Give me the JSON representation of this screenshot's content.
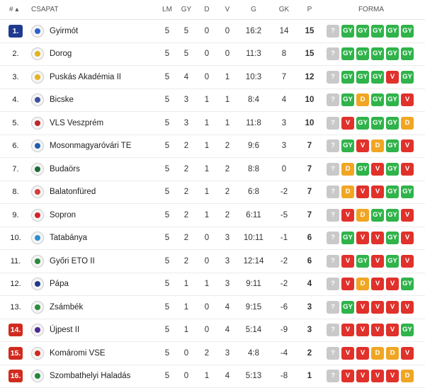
{
  "header": {
    "rank": "# ▴",
    "team": "CSAPAT",
    "lm": "LM",
    "gy": "GY",
    "d": "D",
    "v": "V",
    "g": "G",
    "gk": "GK",
    "p": "P",
    "forma": "FORMA"
  },
  "colors": {
    "promotion": "#1f3b8f",
    "relegation": "#d12b1f",
    "win": "#2fb34a",
    "draw": "#f0a623",
    "loss": "#e0312b",
    "unknown": "#c9c9c9"
  },
  "unknown_label": "?",
  "rows": [
    {
      "rank": "1.",
      "zone": "promotion",
      "team": "Gyirmót",
      "logo_color": "#2a62c9",
      "lm": "5",
      "gy": "5",
      "d": "0",
      "v": "0",
      "g": "16:2",
      "gk": "14",
      "p": "15",
      "form": [
        "GY",
        "GY",
        "GY",
        "GY",
        "GY"
      ]
    },
    {
      "rank": "2.",
      "zone": "",
      "team": "Dorog",
      "logo_color": "#e3b21d",
      "lm": "5",
      "gy": "5",
      "d": "0",
      "v": "0",
      "g": "11:3",
      "gk": "8",
      "p": "15",
      "form": [
        "GY",
        "GY",
        "GY",
        "GY",
        "GY"
      ]
    },
    {
      "rank": "3.",
      "zone": "",
      "team": "Puskás Akadémia II",
      "logo_color": "#e6b31e",
      "lm": "5",
      "gy": "4",
      "d": "0",
      "v": "1",
      "g": "10:3",
      "gk": "7",
      "p": "12",
      "form": [
        "GY",
        "GY",
        "GY",
        "V",
        "GY"
      ]
    },
    {
      "rank": "4.",
      "zone": "",
      "team": "Bicske",
      "logo_color": "#3d4fa0",
      "lm": "5",
      "gy": "3",
      "d": "1",
      "v": "1",
      "g": "8:4",
      "gk": "4",
      "p": "10",
      "form": [
        "GY",
        "D",
        "GY",
        "GY",
        "V"
      ]
    },
    {
      "rank": "5.",
      "zone": "",
      "team": "VLS Veszprém",
      "logo_color": "#c0262d",
      "lm": "5",
      "gy": "3",
      "d": "1",
      "v": "1",
      "g": "11:8",
      "gk": "3",
      "p": "10",
      "form": [
        "V",
        "GY",
        "GY",
        "GY",
        "D"
      ]
    },
    {
      "rank": "6.",
      "zone": "",
      "team": "Mosonmagyaróvári TE",
      "logo_color": "#1d5fae",
      "lm": "5",
      "gy": "2",
      "d": "1",
      "v": "2",
      "g": "9:6",
      "gk": "3",
      "p": "7",
      "form": [
        "GY",
        "V",
        "D",
        "GY",
        "V"
      ]
    },
    {
      "rank": "7.",
      "zone": "",
      "team": "Budaörs",
      "logo_color": "#1c6b3a",
      "lm": "5",
      "gy": "2",
      "d": "1",
      "v": "2",
      "g": "8:8",
      "gk": "0",
      "p": "7",
      "form": [
        "D",
        "GY",
        "V",
        "GY",
        "V"
      ]
    },
    {
      "rank": "8.",
      "zone": "",
      "team": "Balatonfüred",
      "logo_color": "#d63a3a",
      "lm": "5",
      "gy": "2",
      "d": "1",
      "v": "2",
      "g": "6:8",
      "gk": "-2",
      "p": "7",
      "form": [
        "D",
        "V",
        "V",
        "GY",
        "GY"
      ]
    },
    {
      "rank": "9.",
      "zone": "",
      "team": "Sopron",
      "logo_color": "#d2232a",
      "lm": "5",
      "gy": "2",
      "d": "1",
      "v": "2",
      "g": "6:11",
      "gk": "-5",
      "p": "7",
      "form": [
        "V",
        "D",
        "GY",
        "GY",
        "V"
      ]
    },
    {
      "rank": "10.",
      "zone": "",
      "team": "Tatabánya",
      "logo_color": "#2d8fcf",
      "lm": "5",
      "gy": "2",
      "d": "0",
      "v": "3",
      "g": "10:11",
      "gk": "-1",
      "p": "6",
      "form": [
        "GY",
        "V",
        "V",
        "GY",
        "V"
      ]
    },
    {
      "rank": "11.",
      "zone": "",
      "team": "Győri ETO II",
      "logo_color": "#2a8a3c",
      "lm": "5",
      "gy": "2",
      "d": "0",
      "v": "3",
      "g": "12:14",
      "gk": "-2",
      "p": "6",
      "form": [
        "V",
        "GY",
        "V",
        "GY",
        "V"
      ]
    },
    {
      "rank": "12.",
      "zone": "",
      "team": "Pápa",
      "logo_color": "#1e3a8c",
      "lm": "5",
      "gy": "1",
      "d": "1",
      "v": "3",
      "g": "9:11",
      "gk": "-2",
      "p": "4",
      "form": [
        "V",
        "D",
        "V",
        "V",
        "GY"
      ]
    },
    {
      "rank": "13.",
      "zone": "",
      "team": "Zsámbék",
      "logo_color": "#2e8b3d",
      "lm": "5",
      "gy": "1",
      "d": "0",
      "v": "4",
      "g": "9:15",
      "gk": "-6",
      "p": "3",
      "form": [
        "GY",
        "V",
        "V",
        "V",
        "V"
      ]
    },
    {
      "rank": "14.",
      "zone": "relegation",
      "team": "Újpest II",
      "logo_color": "#4b2b8f",
      "lm": "5",
      "gy": "1",
      "d": "0",
      "v": "4",
      "g": "5:14",
      "gk": "-9",
      "p": "3",
      "form": [
        "V",
        "V",
        "V",
        "V",
        "GY"
      ]
    },
    {
      "rank": "15.",
      "zone": "relegation",
      "team": "Komáromi VSE",
      "logo_color": "#d12b1f",
      "lm": "5",
      "gy": "0",
      "d": "2",
      "v": "3",
      "g": "4:8",
      "gk": "-4",
      "p": "2",
      "form": [
        "V",
        "V",
        "D",
        "D",
        "V"
      ]
    },
    {
      "rank": "16.",
      "zone": "relegation",
      "team": "Szombathelyi Haladás",
      "logo_color": "#1f8a3a",
      "lm": "5",
      "gy": "0",
      "d": "1",
      "v": "4",
      "g": "5:13",
      "gk": "-8",
      "p": "1",
      "form": [
        "V",
        "V",
        "V",
        "V",
        "D"
      ]
    }
  ]
}
